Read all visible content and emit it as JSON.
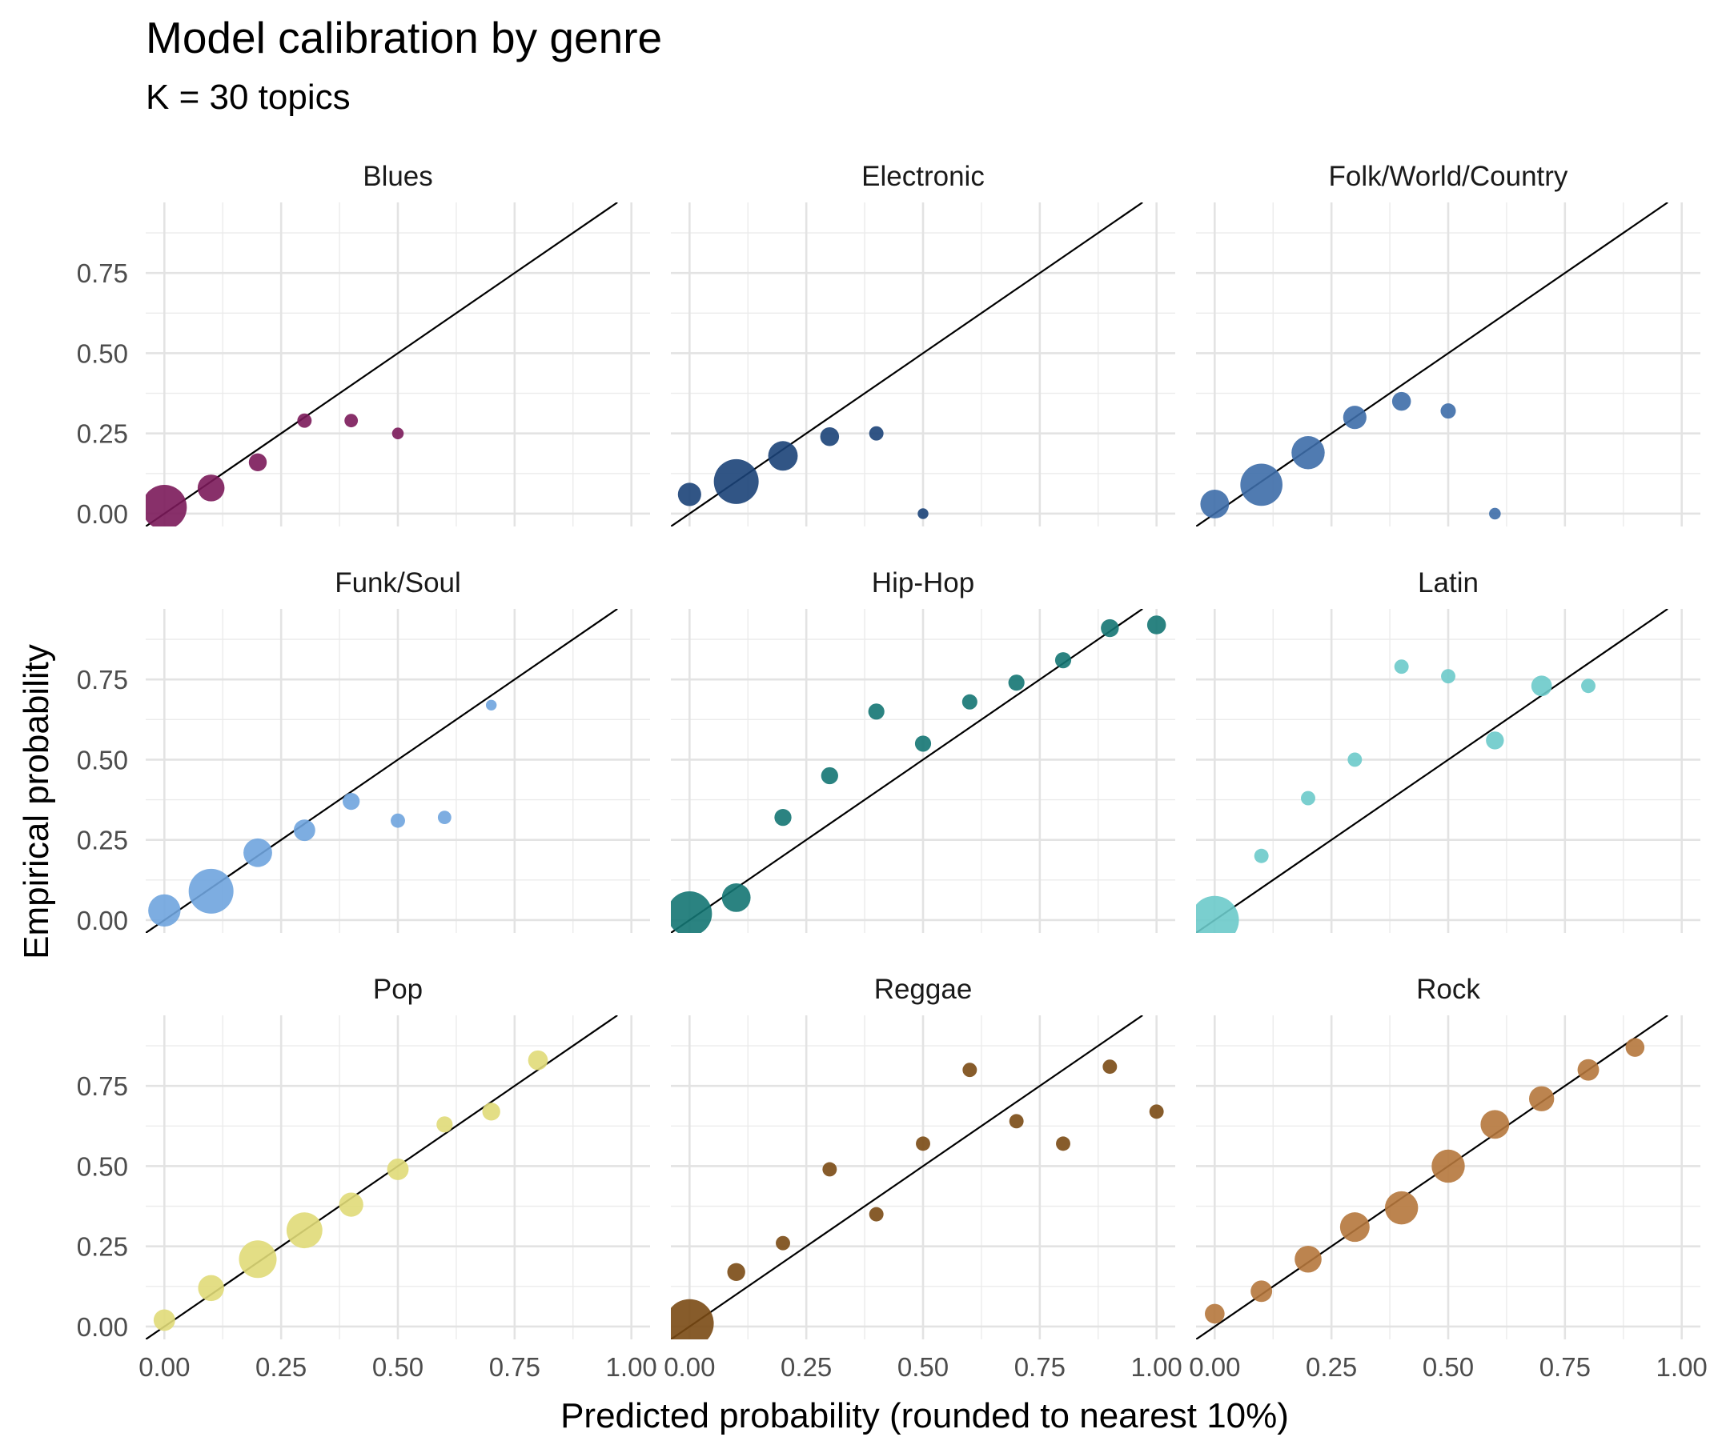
{
  "chart_data": {
    "type": "scatter",
    "title": "Model calibration by genre",
    "subtitle": "K = 30 topics",
    "xlabel": "Predicted probability (rounded to nearest 10%)",
    "ylabel": "Empirical probability",
    "xlim": [
      -0.04,
      1.04
    ],
    "ylim": [
      -0.04,
      0.97
    ],
    "x_ticks": [
      "0.00",
      "0.25",
      "0.50",
      "0.75",
      "1.00"
    ],
    "y_ticks": [
      "0.00",
      "0.25",
      "0.50",
      "0.75"
    ],
    "reference_line": "y = x",
    "grid": true,
    "facets": [
      {
        "name": "Blues",
        "color": "#7B1A5A",
        "points": [
          {
            "x": 0.0,
            "y": 0.02,
            "size": 5.0
          },
          {
            "x": 0.1,
            "y": 0.08,
            "size": 3.0
          },
          {
            "x": 0.2,
            "y": 0.16,
            "size": 2.0
          },
          {
            "x": 0.3,
            "y": 0.29,
            "size": 1.6
          },
          {
            "x": 0.4,
            "y": 0.29,
            "size": 1.5
          },
          {
            "x": 0.5,
            "y": 0.25,
            "size": 1.3
          }
        ]
      },
      {
        "name": "Electronic",
        "color": "#1B4278",
        "points": [
          {
            "x": 0.0,
            "y": 0.06,
            "size": 2.6
          },
          {
            "x": 0.1,
            "y": 0.1,
            "size": 5.0
          },
          {
            "x": 0.2,
            "y": 0.18,
            "size": 3.3
          },
          {
            "x": 0.3,
            "y": 0.24,
            "size": 2.1
          },
          {
            "x": 0.4,
            "y": 0.25,
            "size": 1.6
          },
          {
            "x": 0.5,
            "y": 0.0,
            "size": 1.2
          }
        ]
      },
      {
        "name": "Folk/World/Country",
        "color": "#3D6DA8",
        "points": [
          {
            "x": 0.0,
            "y": 0.03,
            "size": 3.2
          },
          {
            "x": 0.1,
            "y": 0.09,
            "size": 4.7
          },
          {
            "x": 0.2,
            "y": 0.19,
            "size": 3.7
          },
          {
            "x": 0.3,
            "y": 0.3,
            "size": 2.6
          },
          {
            "x": 0.4,
            "y": 0.35,
            "size": 2.1
          },
          {
            "x": 0.5,
            "y": 0.32,
            "size": 1.7
          },
          {
            "x": 0.6,
            "y": 0.0,
            "size": 1.3
          }
        ]
      },
      {
        "name": "Funk/Soul",
        "color": "#6FA4DE",
        "points": [
          {
            "x": 0.0,
            "y": 0.03,
            "size": 3.6
          },
          {
            "x": 0.1,
            "y": 0.09,
            "size": 5.0
          },
          {
            "x": 0.2,
            "y": 0.21,
            "size": 3.2
          },
          {
            "x": 0.3,
            "y": 0.28,
            "size": 2.4
          },
          {
            "x": 0.4,
            "y": 0.37,
            "size": 1.9
          },
          {
            "x": 0.5,
            "y": 0.31,
            "size": 1.6
          },
          {
            "x": 0.6,
            "y": 0.32,
            "size": 1.5
          },
          {
            "x": 0.7,
            "y": 0.67,
            "size": 1.2
          }
        ]
      },
      {
        "name": "Hip-Hop",
        "color": "#147573",
        "points": [
          {
            "x": 0.0,
            "y": 0.02,
            "size": 5.0
          },
          {
            "x": 0.1,
            "y": 0.07,
            "size": 3.2
          },
          {
            "x": 0.2,
            "y": 0.32,
            "size": 1.9
          },
          {
            "x": 0.3,
            "y": 0.45,
            "size": 1.9
          },
          {
            "x": 0.4,
            "y": 0.65,
            "size": 1.8
          },
          {
            "x": 0.5,
            "y": 0.55,
            "size": 1.8
          },
          {
            "x": 0.6,
            "y": 0.68,
            "size": 1.7
          },
          {
            "x": 0.7,
            "y": 0.74,
            "size": 1.8
          },
          {
            "x": 0.8,
            "y": 0.81,
            "size": 1.8
          },
          {
            "x": 0.9,
            "y": 0.91,
            "size": 2.0
          },
          {
            "x": 1.0,
            "y": 0.92,
            "size": 2.1
          }
        ]
      },
      {
        "name": "Latin",
        "color": "#6CCACA",
        "points": [
          {
            "x": 0.0,
            "y": 0.0,
            "size": 5.4
          },
          {
            "x": 0.1,
            "y": 0.2,
            "size": 1.6
          },
          {
            "x": 0.2,
            "y": 0.38,
            "size": 1.6
          },
          {
            "x": 0.3,
            "y": 0.5,
            "size": 1.6
          },
          {
            "x": 0.4,
            "y": 0.79,
            "size": 1.6
          },
          {
            "x": 0.5,
            "y": 0.76,
            "size": 1.6
          },
          {
            "x": 0.6,
            "y": 0.56,
            "size": 2.0
          },
          {
            "x": 0.7,
            "y": 0.73,
            "size": 2.3
          },
          {
            "x": 0.8,
            "y": 0.73,
            "size": 1.6
          }
        ]
      },
      {
        "name": "Pop",
        "color": "#E0DA78",
        "points": [
          {
            "x": 0.0,
            "y": 0.02,
            "size": 2.4
          },
          {
            "x": 0.1,
            "y": 0.12,
            "size": 2.9
          },
          {
            "x": 0.2,
            "y": 0.21,
            "size": 4.2
          },
          {
            "x": 0.3,
            "y": 0.3,
            "size": 4.0
          },
          {
            "x": 0.4,
            "y": 0.38,
            "size": 2.7
          },
          {
            "x": 0.5,
            "y": 0.49,
            "size": 2.4
          },
          {
            "x": 0.6,
            "y": 0.63,
            "size": 1.8
          },
          {
            "x": 0.7,
            "y": 0.67,
            "size": 2.0
          },
          {
            "x": 0.8,
            "y": 0.83,
            "size": 2.2
          }
        ]
      },
      {
        "name": "Reggae",
        "color": "#7A4A14",
        "points": [
          {
            "x": 0.0,
            "y": 0.01,
            "size": 5.4
          },
          {
            "x": 0.1,
            "y": 0.17,
            "size": 2.0
          },
          {
            "x": 0.2,
            "y": 0.26,
            "size": 1.6
          },
          {
            "x": 0.3,
            "y": 0.49,
            "size": 1.6
          },
          {
            "x": 0.4,
            "y": 0.35,
            "size": 1.6
          },
          {
            "x": 0.5,
            "y": 0.57,
            "size": 1.6
          },
          {
            "x": 0.6,
            "y": 0.8,
            "size": 1.6
          },
          {
            "x": 0.7,
            "y": 0.64,
            "size": 1.6
          },
          {
            "x": 0.8,
            "y": 0.57,
            "size": 1.6
          },
          {
            "x": 0.9,
            "y": 0.81,
            "size": 1.6
          },
          {
            "x": 1.0,
            "y": 0.67,
            "size": 1.6
          }
        ]
      },
      {
        "name": "Rock",
        "color": "#B5773C",
        "points": [
          {
            "x": 0.0,
            "y": 0.04,
            "size": 2.2
          },
          {
            "x": 0.1,
            "y": 0.11,
            "size": 2.4
          },
          {
            "x": 0.2,
            "y": 0.21,
            "size": 3.0
          },
          {
            "x": 0.3,
            "y": 0.31,
            "size": 3.3
          },
          {
            "x": 0.4,
            "y": 0.37,
            "size": 3.7
          },
          {
            "x": 0.5,
            "y": 0.5,
            "size": 3.7
          },
          {
            "x": 0.6,
            "y": 0.63,
            "size": 3.2
          },
          {
            "x": 0.7,
            "y": 0.71,
            "size": 2.8
          },
          {
            "x": 0.8,
            "y": 0.8,
            "size": 2.4
          },
          {
            "x": 0.9,
            "y": 0.87,
            "size": 2.1
          }
        ]
      }
    ]
  }
}
